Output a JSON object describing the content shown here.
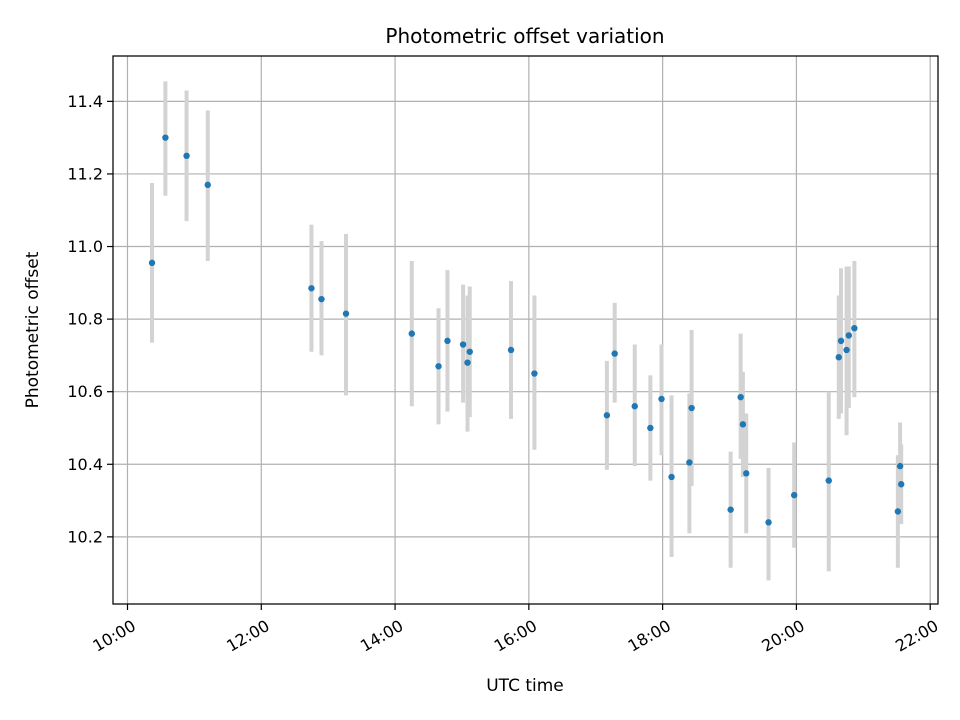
{
  "chart_data": {
    "type": "scatter",
    "title": "Photometric offset variation",
    "xlabel": "UTC time",
    "ylabel": "Photometric offset",
    "x_ticks": [
      "10:00",
      "12:00",
      "14:00",
      "16:00",
      "18:00",
      "20:00",
      "22:00"
    ],
    "y_ticks": [
      "10.2",
      "10.4",
      "10.6",
      "10.8",
      "11.0",
      "11.2",
      "11.4"
    ],
    "xlim": [
      "09:47",
      "22:07"
    ],
    "ylim": [
      10.015,
      11.525
    ],
    "grid": true,
    "colors": {
      "point": "#1f77b4",
      "errorbar": "#d3d3d3",
      "grid": "#b0b0b0"
    },
    "points": [
      {
        "t": "10:22",
        "y": 10.955,
        "lo": 10.735,
        "hi": 11.175
      },
      {
        "t": "10:34",
        "y": 11.3,
        "lo": 11.14,
        "hi": 11.455
      },
      {
        "t": "10:53",
        "y": 11.25,
        "lo": 11.07,
        "hi": 11.43
      },
      {
        "t": "11:12",
        "y": 11.17,
        "lo": 10.96,
        "hi": 11.375
      },
      {
        "t": "12:45",
        "y": 10.885,
        "lo": 10.71,
        "hi": 11.06
      },
      {
        "t": "12:54",
        "y": 10.855,
        "lo": 10.7,
        "hi": 11.015
      },
      {
        "t": "13:16",
        "y": 10.815,
        "lo": 10.59,
        "hi": 11.035
      },
      {
        "t": "14:15",
        "y": 10.76,
        "lo": 10.56,
        "hi": 10.96
      },
      {
        "t": "14:39",
        "y": 10.67,
        "lo": 10.51,
        "hi": 10.83
      },
      {
        "t": "14:47",
        "y": 10.74,
        "lo": 10.545,
        "hi": 10.935
      },
      {
        "t": "15:01",
        "y": 10.73,
        "lo": 10.57,
        "hi": 10.895
      },
      {
        "t": "15:05",
        "y": 10.68,
        "lo": 10.49,
        "hi": 10.865
      },
      {
        "t": "15:07",
        "y": 10.71,
        "lo": 10.53,
        "hi": 10.89
      },
      {
        "t": "15:44",
        "y": 10.715,
        "lo": 10.525,
        "hi": 10.905
      },
      {
        "t": "16:05",
        "y": 10.65,
        "lo": 10.44,
        "hi": 10.865
      },
      {
        "t": "17:10",
        "y": 10.535,
        "lo": 10.385,
        "hi": 10.685
      },
      {
        "t": "17:17",
        "y": 10.705,
        "lo": 10.57,
        "hi": 10.845
      },
      {
        "t": "17:35",
        "y": 10.56,
        "lo": 10.395,
        "hi": 10.73
      },
      {
        "t": "17:49",
        "y": 10.5,
        "lo": 10.355,
        "hi": 10.645
      },
      {
        "t": "17:59",
        "y": 10.58,
        "lo": 10.425,
        "hi": 10.73
      },
      {
        "t": "18:08",
        "y": 10.365,
        "lo": 10.145,
        "hi": 10.59
      },
      {
        "t": "18:24",
        "y": 10.405,
        "lo": 10.21,
        "hi": 10.595
      },
      {
        "t": "18:26",
        "y": 10.555,
        "lo": 10.34,
        "hi": 10.77
      },
      {
        "t": "19:01",
        "y": 10.275,
        "lo": 10.115,
        "hi": 10.435
      },
      {
        "t": "19:10",
        "y": 10.585,
        "lo": 10.415,
        "hi": 10.76
      },
      {
        "t": "19:12",
        "y": 10.51,
        "lo": 10.365,
        "hi": 10.655
      },
      {
        "t": "19:15",
        "y": 10.375,
        "lo": 10.21,
        "hi": 10.54
      },
      {
        "t": "19:35",
        "y": 10.24,
        "lo": 10.08,
        "hi": 10.39
      },
      {
        "t": "19:58",
        "y": 10.315,
        "lo": 10.17,
        "hi": 10.46
      },
      {
        "t": "20:29",
        "y": 10.355,
        "lo": 10.105,
        "hi": 10.6
      },
      {
        "t": "20:38",
        "y": 10.695,
        "lo": 10.525,
        "hi": 10.865
      },
      {
        "t": "20:40",
        "y": 10.74,
        "lo": 10.54,
        "hi": 10.94
      },
      {
        "t": "20:45",
        "y": 10.715,
        "lo": 10.48,
        "hi": 10.945
      },
      {
        "t": "20:47",
        "y": 10.755,
        "lo": 10.555,
        "hi": 10.945
      },
      {
        "t": "20:52",
        "y": 10.775,
        "lo": 10.585,
        "hi": 10.96
      },
      {
        "t": "21:31",
        "y": 10.27,
        "lo": 10.115,
        "hi": 10.425
      },
      {
        "t": "21:33",
        "y": 10.395,
        "lo": 10.275,
        "hi": 10.515
      },
      {
        "t": "21:34",
        "y": 10.345,
        "lo": 10.235,
        "hi": 10.455
      }
    ]
  }
}
